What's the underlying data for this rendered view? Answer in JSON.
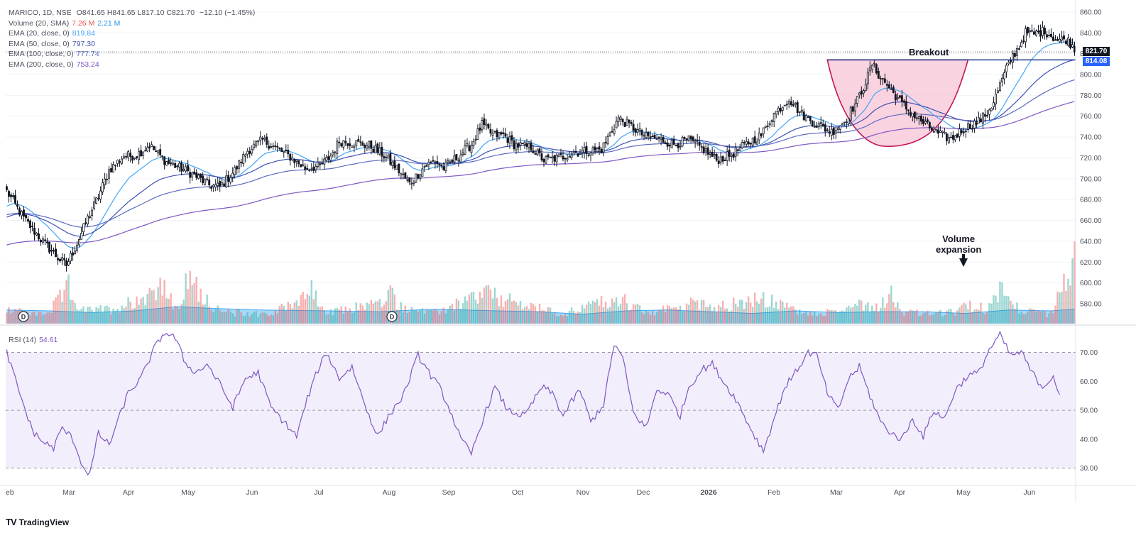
{
  "header": {
    "symbol_line": "MARICO, 1D, NSE",
    "ohlc": {
      "o": "O841.65",
      "h": "H841.65",
      "l": "L817.10",
      "c": "C821.70",
      "chg": "−12.10 (−1.45%)"
    }
  },
  "indicators": [
    {
      "label": "Volume (20, SMA)",
      "values": [
        "7.26 M",
        "2.21 M"
      ],
      "colors": [
        "#ef5350",
        "#2196f3"
      ]
    },
    {
      "label": "EMA (20, close, 0)",
      "values": [
        "819.84"
      ],
      "colors": [
        "#42a5f5"
      ]
    },
    {
      "label": "EMA (50, close, 0)",
      "values": [
        "797.30"
      ],
      "colors": [
        "#3f51b5"
      ]
    },
    {
      "label": "EMA (100, close, 0)",
      "values": [
        "777.74"
      ],
      "colors": [
        "#5c6bc0"
      ]
    },
    {
      "label": "EMA (200, close, 0)",
      "values": [
        "753.24"
      ],
      "colors": [
        "#7e57c2"
      ]
    }
  ],
  "rsi": {
    "label": "RSI (14)",
    "value": "54.61"
  },
  "price_tags": [
    {
      "value": "821.70",
      "color": "#131722"
    },
    {
      "value": "814.08",
      "color": "#2962ff"
    }
  ],
  "annotations": {
    "breakout": "Breakout",
    "volume_l1": "Volume",
    "volume_l2": "expansion"
  },
  "branding": {
    "logo": "TV",
    "name": "TradingView"
  },
  "dividend_marker": "D",
  "chart_data": {
    "type": "candlestick",
    "price_axis": {
      "ticks": [
        580,
        600,
        620,
        640,
        660,
        680,
        700,
        720,
        740,
        760,
        780,
        800,
        820,
        840,
        860
      ],
      "range": [
        565,
        862
      ]
    },
    "rsi_axis": {
      "ticks": [
        30,
        40,
        50,
        60,
        70
      ],
      "range": [
        25,
        77
      ]
    },
    "x_labels": [
      "eb",
      "Mar",
      "Apr",
      "May",
      "Jun",
      "Jul",
      "Aug",
      "Sep",
      "Oct",
      "Nov",
      "Dec",
      "2026",
      "Feb",
      "Mar",
      "Apr",
      "May",
      "Jun"
    ],
    "breakout_level": 814.08,
    "last_close": 821.7,
    "price_keypoints": [
      [
        0,
        688
      ],
      [
        8,
        662
      ],
      [
        16,
        642
      ],
      [
        24,
        624
      ],
      [
        28,
        617
      ],
      [
        33,
        638
      ],
      [
        38,
        662
      ],
      [
        43,
        683
      ],
      [
        48,
        708
      ],
      [
        55,
        722
      ],
      [
        60,
        722
      ],
      [
        67,
        732
      ],
      [
        75,
        716
      ],
      [
        83,
        709
      ],
      [
        89,
        702
      ],
      [
        95,
        694
      ],
      [
        100,
        692
      ],
      [
        107,
        708
      ],
      [
        113,
        727
      ],
      [
        120,
        737
      ],
      [
        126,
        730
      ],
      [
        133,
        721
      ],
      [
        140,
        710
      ],
      [
        147,
        712
      ],
      [
        152,
        722
      ],
      [
        156,
        736
      ],
      [
        162,
        735
      ],
      [
        170,
        732
      ],
      [
        176,
        724
      ],
      [
        183,
        710
      ],
      [
        189,
        695
      ],
      [
        196,
        712
      ],
      [
        201,
        717
      ],
      [
        205,
        710
      ],
      [
        212,
        722
      ],
      [
        218,
        733
      ],
      [
        223,
        752
      ],
      [
        228,
        742
      ],
      [
        233,
        742
      ],
      [
        238,
        733
      ],
      [
        246,
        730
      ],
      [
        252,
        718
      ],
      [
        259,
        720
      ],
      [
        266,
        725
      ],
      [
        273,
        727
      ],
      [
        279,
        728
      ],
      [
        287,
        758
      ],
      [
        293,
        750
      ],
      [
        300,
        740
      ],
      [
        306,
        738
      ],
      [
        313,
        733
      ],
      [
        320,
        737
      ],
      [
        327,
        728
      ],
      [
        333,
        718
      ],
      [
        340,
        723
      ],
      [
        346,
        732
      ],
      [
        354,
        742
      ],
      [
        359,
        760
      ],
      [
        367,
        777
      ],
      [
        373,
        762
      ],
      [
        380,
        752
      ],
      [
        387,
        745
      ],
      [
        393,
        755
      ],
      [
        399,
        775
      ],
      [
        403,
        793
      ],
      [
        406,
        810
      ],
      [
        409,
        800
      ],
      [
        413,
        790
      ],
      [
        420,
        772
      ],
      [
        426,
        760
      ],
      [
        433,
        749
      ],
      [
        437,
        743
      ],
      [
        443,
        738
      ],
      [
        449,
        748
      ],
      [
        456,
        755
      ],
      [
        460,
        763
      ],
      [
        463,
        774
      ],
      [
        466,
        790
      ],
      [
        469,
        805
      ],
      [
        472,
        818
      ],
      [
        475,
        827
      ],
      [
        478,
        840
      ],
      [
        482,
        839
      ],
      [
        487,
        842
      ],
      [
        493,
        833
      ],
      [
        497,
        834
      ],
      [
        501,
        826
      ]
    ],
    "rsi_keypoints": [
      [
        0,
        70
      ],
      [
        6,
        56
      ],
      [
        12,
        43
      ],
      [
        17,
        39
      ],
      [
        22,
        37
      ],
      [
        26,
        44
      ],
      [
        31,
        40
      ],
      [
        36,
        30
      ],
      [
        39,
        28
      ],
      [
        43,
        42
      ],
      [
        48,
        38
      ],
      [
        52,
        46
      ],
      [
        57,
        56
      ],
      [
        63,
        61
      ],
      [
        69,
        71
      ],
      [
        74,
        77
      ],
      [
        79,
        75
      ],
      [
        84,
        66
      ],
      [
        89,
        63
      ],
      [
        94,
        66
      ],
      [
        100,
        59
      ],
      [
        106,
        51
      ],
      [
        112,
        61
      ],
      [
        118,
        63
      ],
      [
        124,
        51
      ],
      [
        130,
        46
      ],
      [
        136,
        41
      ],
      [
        141,
        54
      ],
      [
        146,
        64
      ],
      [
        150,
        70
      ],
      [
        156,
        61
      ],
      [
        162,
        65
      ],
      [
        168,
        52
      ],
      [
        174,
        41
      ],
      [
        180,
        49
      ],
      [
        186,
        55
      ],
      [
        193,
        69
      ],
      [
        199,
        62
      ],
      [
        203,
        58
      ],
      [
        208,
        50
      ],
      [
        213,
        40
      ],
      [
        218,
        35
      ],
      [
        223,
        46
      ],
      [
        229,
        58
      ],
      [
        235,
        50
      ],
      [
        243,
        48
      ],
      [
        251,
        58
      ],
      [
        256,
        56
      ],
      [
        261,
        48
      ],
      [
        265,
        53
      ],
      [
        269,
        57
      ],
      [
        274,
        46
      ],
      [
        280,
        52
      ],
      [
        285,
        73
      ],
      [
        289,
        68
      ],
      [
        294,
        49
      ],
      [
        300,
        44
      ],
      [
        305,
        57
      ],
      [
        310,
        56
      ],
      [
        316,
        48
      ],
      [
        320,
        58
      ],
      [
        326,
        64
      ],
      [
        331,
        66
      ],
      [
        337,
        59
      ],
      [
        342,
        54
      ],
      [
        346,
        48
      ],
      [
        351,
        41
      ],
      [
        355,
        36
      ],
      [
        360,
        47
      ],
      [
        365,
        58
      ],
      [
        370,
        63
      ],
      [
        376,
        70
      ],
      [
        380,
        69
      ],
      [
        385,
        56
      ],
      [
        390,
        50
      ],
      [
        395,
        61
      ],
      [
        400,
        65
      ],
      [
        405,
        55
      ],
      [
        410,
        46
      ],
      [
        415,
        42
      ],
      [
        420,
        40
      ],
      [
        425,
        47
      ],
      [
        430,
        41
      ],
      [
        435,
        50
      ],
      [
        440,
        47
      ],
      [
        445,
        57
      ],
      [
        451,
        62
      ],
      [
        456,
        63
      ],
      [
        461,
        71
      ],
      [
        466,
        76
      ],
      [
        471,
        69
      ],
      [
        476,
        70
      ],
      [
        481,
        63
      ],
      [
        486,
        58
      ],
      [
        491,
        62
      ],
      [
        494,
        55
      ]
    ],
    "volume_keypoints": [
      [
        0,
        0.2
      ],
      [
        10,
        0.12
      ],
      [
        20,
        0.14
      ],
      [
        29,
        0.45
      ],
      [
        35,
        0.16
      ],
      [
        50,
        0.18
      ],
      [
        66,
        0.35
      ],
      [
        72,
        0.5
      ],
      [
        80,
        0.15
      ],
      [
        85,
        0.55
      ],
      [
        100,
        0.14
      ],
      [
        125,
        0.12
      ],
      [
        139,
        0.35
      ],
      [
        143,
        0.4
      ],
      [
        150,
        0.12
      ],
      [
        178,
        0.28
      ],
      [
        180,
        0.38
      ],
      [
        184,
        0.22
      ],
      [
        200,
        0.12
      ],
      [
        225,
        0.38
      ],
      [
        232,
        0.3
      ],
      [
        260,
        0.12
      ],
      [
        282,
        0.28
      ],
      [
        290,
        0.28
      ],
      [
        300,
        0.12
      ],
      [
        327,
        0.28
      ],
      [
        332,
        0.2
      ],
      [
        355,
        0.3
      ],
      [
        375,
        0.12
      ],
      [
        388,
        0.14
      ],
      [
        400,
        0.25
      ],
      [
        410,
        0.2
      ],
      [
        414,
        0.42
      ],
      [
        420,
        0.14
      ],
      [
        435,
        0.12
      ],
      [
        445,
        0.14
      ],
      [
        451,
        0.22
      ],
      [
        460,
        0.18
      ],
      [
        466,
        0.42
      ],
      [
        470,
        0.45
      ],
      [
        475,
        0.15
      ],
      [
        490,
        0.12
      ],
      [
        501,
        0.8
      ]
    ],
    "volume_sma_keypoints": [
      [
        0,
        0.16
      ],
      [
        20,
        0.15
      ],
      [
        40,
        0.13
      ],
      [
        60,
        0.15
      ],
      [
        80,
        0.2
      ],
      [
        95,
        0.18
      ],
      [
        120,
        0.16
      ],
      [
        150,
        0.15
      ],
      [
        175,
        0.14
      ],
      [
        200,
        0.17
      ],
      [
        230,
        0.15
      ],
      [
        250,
        0.14
      ],
      [
        270,
        0.11
      ],
      [
        290,
        0.15
      ],
      [
        310,
        0.16
      ],
      [
        330,
        0.14
      ],
      [
        350,
        0.12
      ],
      [
        370,
        0.15
      ],
      [
        390,
        0.13
      ],
      [
        410,
        0.14
      ],
      [
        430,
        0.14
      ],
      [
        450,
        0.12
      ],
      [
        470,
        0.16
      ],
      [
        490,
        0.15
      ],
      [
        501,
        0.17
      ]
    ],
    "cup_shape": {
      "start_index": 385,
      "bottom_index": 413,
      "end_index": 451,
      "rim_price": 814.08,
      "bottom_price": 731
    }
  }
}
